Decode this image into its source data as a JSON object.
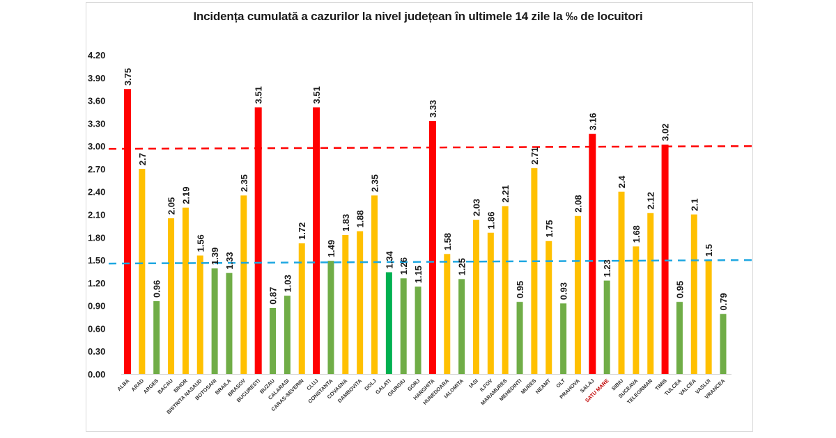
{
  "chart_data": {
    "type": "bar",
    "title": "Incidența cumulată a cazurilor la nivel județean în ultimele 14 zile la ‰ de locuitori",
    "xlabel": "",
    "ylabel": "",
    "ylim": [
      0,
      4.2
    ],
    "yticks": [
      "0.00",
      "0.30",
      "0.60",
      "0.90",
      "1.20",
      "1.50",
      "1.80",
      "2.10",
      "2.40",
      "2.70",
      "3.00",
      "3.30",
      "3.60",
      "3.90",
      "4.20"
    ],
    "grid": false,
    "legend": "none",
    "categories": [
      "ALBA",
      "ARAD",
      "ARGES",
      "BACAU",
      "BIHOR",
      "BISTRITA NASAUD",
      "BOTOSANI",
      "BRAILA",
      "BRASOV",
      "BUCURESTI",
      "BUZAU",
      "CALARASI",
      "CARAS-SEVERIN",
      "CLUJ",
      "CONSTANTA",
      "COVASNA",
      "DAMBOVITA",
      "DOLJ",
      "GALATI",
      "GIURGIU",
      "GORJ",
      "HARGHITA",
      "HUNEDOARA",
      "IALOMITA",
      "IASI",
      "ILFOV",
      "MARAMURES",
      "MEHEDINTI",
      "MURES",
      "NEAMT",
      "OLT",
      "PRAHOVA",
      "SALAJ",
      "SATU MARE",
      "SIBIU",
      "SUCEAVA",
      "TELEORMAN",
      "TIMIS",
      "TULCEA",
      "VALCEA",
      "VASLUI",
      "VRANCEA"
    ],
    "values": [
      3.75,
      2.7,
      0.96,
      2.05,
      2.19,
      1.56,
      1.39,
      1.33,
      2.35,
      3.51,
      0.87,
      1.03,
      1.72,
      3.51,
      1.49,
      1.83,
      1.88,
      2.35,
      1.34,
      1.26,
      1.15,
      3.33,
      1.58,
      1.25,
      2.03,
      1.86,
      2.21,
      0.95,
      2.71,
      1.75,
      0.93,
      2.08,
      3.16,
      1.23,
      2.4,
      1.68,
      2.12,
      3.02,
      0.95,
      2.1,
      1.5,
      0.79
    ],
    "value_labels": [
      "3.75",
      "2.7",
      "0.96",
      "2.05",
      "2.19",
      "1.56",
      "1.39",
      "1.33",
      "2.35",
      "3.51",
      "0.87",
      "1.03",
      "1.72",
      "3.51",
      "1.49",
      "1.83",
      "1.88",
      "2.35",
      "1.34",
      "1.26",
      "1.15",
      "3.33",
      "1.58",
      "1.25",
      "2.03",
      "1.86",
      "2.21",
      "0.95",
      "2.71",
      "1.75",
      "0.93",
      "2.08",
      "3.16",
      "1.23",
      "2.4",
      "1.68",
      "2.12",
      "3.02",
      "0.95",
      "2.1",
      "1.5",
      "0.79"
    ],
    "bar_colors": [
      "red",
      "yellow",
      "green",
      "yellow",
      "yellow",
      "yellow",
      "green",
      "green",
      "yellow",
      "red",
      "green",
      "green",
      "yellow",
      "red",
      "green",
      "yellow",
      "yellow",
      "yellow",
      "brightgreen",
      "green",
      "green",
      "red",
      "yellow",
      "green",
      "yellow",
      "yellow",
      "yellow",
      "green",
      "yellow",
      "yellow",
      "green",
      "yellow",
      "red",
      "green",
      "yellow",
      "yellow",
      "yellow",
      "red",
      "green",
      "yellow",
      "yellow",
      "green"
    ],
    "highlighted_category": "SATU MARE",
    "reference_lines": [
      {
        "name": "red-threshold",
        "value": 3.0,
        "color": "#ff0000",
        "style": "dashed"
      },
      {
        "name": "blue-threshold",
        "value": 1.5,
        "color": "#1ea7e1",
        "style": "dashed"
      }
    ],
    "palette": {
      "red": "#ff0000",
      "yellow": "#ffc000",
      "green": "#70ad47",
      "brightgreen": "#00b050",
      "highlight_label": "#c00000"
    }
  }
}
